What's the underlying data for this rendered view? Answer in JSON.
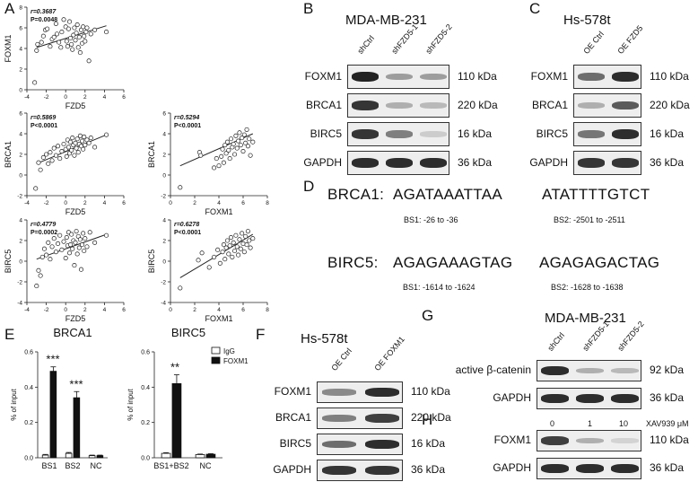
{
  "panel_letters": {
    "A": "A",
    "B": "B",
    "C": "C",
    "D": "D",
    "E": "E",
    "F": "F",
    "G": "G",
    "H": "H"
  },
  "scatter": [
    {
      "id": "a1",
      "ylabel": "FOXM1",
      "xlabel": "FZD5",
      "r": "r=0.3687",
      "p": "P=0.0048",
      "yticks": [
        "8",
        "6",
        "4",
        "2",
        "0"
      ],
      "xticks": [
        "-4",
        "-2",
        "0",
        "2",
        "4",
        "6"
      ],
      "xlim": [
        -4,
        6
      ],
      "ylim": [
        0,
        8
      ],
      "fit": [
        [
          -3,
          4.1
        ],
        [
          4.2,
          6.2
        ]
      ],
      "points": [
        [
          -3.2,
          0.7
        ],
        [
          -3,
          3.8
        ],
        [
          -2.9,
          4.4
        ],
        [
          -2.5,
          4.6
        ],
        [
          -2.3,
          5.2
        ],
        [
          -2.1,
          5.8
        ],
        [
          -1.9,
          5.9
        ],
        [
          -1.6,
          4.2
        ],
        [
          -1.4,
          4.9
        ],
        [
          -1.2,
          5.1
        ],
        [
          -1,
          6.4
        ],
        [
          -0.9,
          5.4
        ],
        [
          -0.7,
          4.6
        ],
        [
          -0.5,
          4.1
        ],
        [
          -0.4,
          5.6
        ],
        [
          -0.2,
          6.8
        ],
        [
          0,
          6.1
        ],
        [
          0.1,
          4.7
        ],
        [
          0.2,
          4.2
        ],
        [
          0.3,
          5.9
        ],
        [
          0.4,
          6.6
        ],
        [
          0.5,
          5.0
        ],
        [
          0.6,
          4.4
        ],
        [
          0.7,
          3.9
        ],
        [
          0.8,
          5.3
        ],
        [
          0.9,
          6.0
        ],
        [
          1,
          4.8
        ],
        [
          1.1,
          5.5
        ],
        [
          1.2,
          6.3
        ],
        [
          1.3,
          4.1
        ],
        [
          1.4,
          5.1
        ],
        [
          1.5,
          3.6
        ],
        [
          1.6,
          5.8
        ],
        [
          1.7,
          4.5
        ],
        [
          1.8,
          6.1
        ],
        [
          1.9,
          5.2
        ],
        [
          2,
          4.7
        ],
        [
          2.1,
          5.6
        ],
        [
          2.2,
          6.0
        ],
        [
          2.4,
          2.8
        ],
        [
          2.6,
          5.4
        ],
        [
          3,
          5.8
        ],
        [
          4.2,
          5.6
        ]
      ]
    },
    {
      "id": "a2",
      "ylabel": "BRCA1",
      "xlabel": "FZD5",
      "r": "r=0.5869",
      "p": "P<0.0001",
      "yticks": [
        "6",
        "4",
        "2",
        "0",
        "-2"
      ],
      "xticks": [
        "-4",
        "-2",
        "0",
        "2",
        "4",
        "6"
      ],
      "xlim": [
        -4,
        6
      ],
      "ylim": [
        -2,
        6
      ],
      "fit": [
        [
          -3,
          1.1
        ],
        [
          4.2,
          3.9
        ]
      ],
      "points": [
        [
          -3.1,
          -1.3
        ],
        [
          -2.8,
          1.2
        ],
        [
          -2.6,
          0.5
        ],
        [
          -2.3,
          1.7
        ],
        [
          -2.0,
          2.0
        ],
        [
          -1.8,
          1.1
        ],
        [
          -1.6,
          2.2
        ],
        [
          -1.4,
          1.4
        ],
        [
          -1.2,
          2.6
        ],
        [
          -1.0,
          1.9
        ],
        [
          -0.8,
          2.8
        ],
        [
          -0.6,
          1.6
        ],
        [
          -0.4,
          2.3
        ],
        [
          -0.2,
          3.0
        ],
        [
          0,
          2.5
        ],
        [
          0.1,
          1.8
        ],
        [
          0.2,
          3.4
        ],
        [
          0.3,
          2.7
        ],
        [
          0.4,
          2.1
        ],
        [
          0.5,
          3.2
        ],
        [
          0.6,
          2.4
        ],
        [
          0.7,
          3.6
        ],
        [
          0.8,
          2.9
        ],
        [
          0.9,
          1.9
        ],
        [
          1,
          3.1
        ],
        [
          1.1,
          2.6
        ],
        [
          1.2,
          3.5
        ],
        [
          1.3,
          2.2
        ],
        [
          1.4,
          3.0
        ],
        [
          1.5,
          3.8
        ],
        [
          1.6,
          2.8
        ],
        [
          1.7,
          3.3
        ],
        [
          1.8,
          2.5
        ],
        [
          1.9,
          3.7
        ],
        [
          2,
          2.9
        ],
        [
          2.2,
          3.4
        ],
        [
          2.4,
          3.1
        ],
        [
          2.6,
          3.6
        ],
        [
          3,
          2.7
        ],
        [
          4.2,
          3.9
        ]
      ]
    },
    {
      "id": "a3",
      "ylabel": "BRCA1",
      "xlabel": "FOXM1",
      "r": "r=0.5294",
      "p": "P<0.0001",
      "yticks": [
        "6",
        "4",
        "2",
        "0",
        "-2"
      ],
      "xticks": [
        "0",
        "2",
        "4",
        "6",
        "8"
      ],
      "xlim": [
        0,
        8
      ],
      "ylim": [
        -2,
        6
      ],
      "fit": [
        [
          0.8,
          0.9
        ],
        [
          6.8,
          4.0
        ]
      ],
      "points": [
        [
          0.8,
          -1.2
        ],
        [
          2.4,
          2.2
        ],
        [
          2.5,
          1.9
        ],
        [
          3.6,
          0.7
        ],
        [
          3.8,
          1.6
        ],
        [
          4.0,
          0.9
        ],
        [
          4.2,
          1.8
        ],
        [
          4.3,
          2.5
        ],
        [
          4.4,
          1.2
        ],
        [
          4.5,
          2.9
        ],
        [
          4.6,
          2.1
        ],
        [
          4.7,
          3.2
        ],
        [
          4.8,
          2.4
        ],
        [
          4.9,
          1.6
        ],
        [
          5.0,
          3.5
        ],
        [
          5.1,
          2.7
        ],
        [
          5.2,
          3.0
        ],
        [
          5.3,
          2.0
        ],
        [
          5.4,
          3.8
        ],
        [
          5.5,
          2.6
        ],
        [
          5.6,
          3.3
        ],
        [
          5.7,
          4.1
        ],
        [
          5.8,
          2.9
        ],
        [
          5.9,
          3.6
        ],
        [
          6.0,
          2.3
        ],
        [
          6.1,
          3.9
        ],
        [
          6.2,
          3.1
        ],
        [
          6.3,
          4.4
        ],
        [
          6.4,
          2.8
        ],
        [
          6.5,
          3.5
        ],
        [
          6.6,
          1.9
        ],
        [
          6.8,
          3.2
        ]
      ]
    },
    {
      "id": "a4",
      "ylabel": "BIRC5",
      "xlabel": "FZD5",
      "r": "r=0.4779",
      "p": "P=0.0002",
      "yticks": [
        "4",
        "2",
        "0",
        "-2",
        "-4"
      ],
      "xticks": [
        "-4",
        "-2",
        "0",
        "2",
        "4",
        "6"
      ],
      "xlim": [
        -4,
        6
      ],
      "ylim": [
        -4,
        4
      ],
      "fit": [
        [
          -3,
          0.2
        ],
        [
          4.2,
          2.6
        ]
      ],
      "points": [
        [
          -3.0,
          -2.4
        ],
        [
          -2.8,
          -0.9
        ],
        [
          -2.6,
          -1.4
        ],
        [
          -2.4,
          0.4
        ],
        [
          -2.2,
          1.2
        ],
        [
          -2.0,
          0.6
        ],
        [
          -1.8,
          1.8
        ],
        [
          -1.6,
          0.2
        ],
        [
          -1.4,
          1.4
        ],
        [
          -1.2,
          2.2
        ],
        [
          -1.0,
          0.9
        ],
        [
          -0.8,
          1.7
        ],
        [
          -0.6,
          2.5
        ],
        [
          -0.4,
          1.1
        ],
        [
          -0.2,
          1.9
        ],
        [
          0,
          0.3
        ],
        [
          0.1,
          2.3
        ],
        [
          0.2,
          1.5
        ],
        [
          0.3,
          2.8
        ],
        [
          0.4,
          0.8
        ],
        [
          0.5,
          1.6
        ],
        [
          0.6,
          2.6
        ],
        [
          0.7,
          1.2
        ],
        [
          0.8,
          2.0
        ],
        [
          0.9,
          -0.4
        ],
        [
          1.0,
          1.8
        ],
        [
          1.1,
          2.9
        ],
        [
          1.2,
          0.7
        ],
        [
          1.3,
          2.4
        ],
        [
          1.4,
          1.3
        ],
        [
          1.5,
          2.1
        ],
        [
          1.6,
          -0.8
        ],
        [
          1.7,
          1.6
        ],
        [
          1.8,
          2.7
        ],
        [
          1.9,
          1.0
        ],
        [
          2.0,
          2.2
        ],
        [
          2.2,
          1.4
        ],
        [
          2.5,
          2.8
        ],
        [
          3.0,
          1.8
        ],
        [
          4.2,
          2.5
        ]
      ]
    },
    {
      "id": "a5",
      "ylabel": "BIRC5",
      "xlabel": "FOXM1",
      "r": "r=0.6278",
      "p": "P<0.0001",
      "yticks": [
        "4",
        "2",
        "0",
        "-2",
        "-4"
      ],
      "xticks": [
        "0",
        "2",
        "4",
        "6",
        "8"
      ],
      "xlim": [
        0,
        8
      ],
      "ylim": [
        -4,
        4
      ],
      "fit": [
        [
          0.8,
          -1.6
        ],
        [
          6.8,
          2.6
        ]
      ],
      "points": [
        [
          0.8,
          -2.6
        ],
        [
          2.3,
          0.1
        ],
        [
          2.6,
          0.8
        ],
        [
          3.2,
          -0.6
        ],
        [
          3.6,
          0.4
        ],
        [
          3.9,
          1.1
        ],
        [
          4.1,
          -0.2
        ],
        [
          4.3,
          0.9
        ],
        [
          4.4,
          1.6
        ],
        [
          4.5,
          0.2
        ],
        [
          4.6,
          1.3
        ],
        [
          4.7,
          2.0
        ],
        [
          4.8,
          0.7
        ],
        [
          4.9,
          1.5
        ],
        [
          5.0,
          2.3
        ],
        [
          5.1,
          0.4
        ],
        [
          5.2,
          1.8
        ],
        [
          5.3,
          1.0
        ],
        [
          5.4,
          2.5
        ],
        [
          5.5,
          1.4
        ],
        [
          5.6,
          0.6
        ],
        [
          5.7,
          2.1
        ],
        [
          5.8,
          1.2
        ],
        [
          5.9,
          2.7
        ],
        [
          6.0,
          1.7
        ],
        [
          6.1,
          0.9
        ],
        [
          6.2,
          2.4
        ],
        [
          6.3,
          1.6
        ],
        [
          6.4,
          2.9
        ],
        [
          6.5,
          2.0
        ],
        [
          6.6,
          1.3
        ],
        [
          6.8,
          2.2
        ]
      ]
    }
  ],
  "blot_b": {
    "title": "MDA-MB-231",
    "lanes": [
      "shCtrl",
      "shFZD5-1",
      "shFZD5-2"
    ],
    "rows": [
      {
        "protein": "FOXM1",
        "kda": "110 kDa",
        "levels": [
          1.0,
          0.35,
          0.35
        ]
      },
      {
        "protein": "BRCA1",
        "kda": "220 kDa",
        "levels": [
          0.9,
          0.25,
          0.2
        ]
      },
      {
        "protein": "BIRC5",
        "kda": "16 kDa",
        "levels": [
          0.9,
          0.5,
          0.1
        ]
      },
      {
        "protein": "GAPDH",
        "kda": "36 kDa",
        "levels": [
          0.95,
          0.95,
          0.95
        ]
      }
    ]
  },
  "blot_c": {
    "title": "Hs-578t",
    "lanes": [
      "OE Ctrl",
      "OE FZD5"
    ],
    "rows": [
      {
        "protein": "FOXM1",
        "kda": "110 kDa",
        "levels": [
          0.6,
          0.95
        ]
      },
      {
        "protein": "BRCA1",
        "kda": "220 kDa",
        "levels": [
          0.25,
          0.7
        ]
      },
      {
        "protein": "BIRC5",
        "kda": "16 kDa",
        "levels": [
          0.55,
          0.95
        ]
      },
      {
        "protein": "GAPDH",
        "kda": "36 kDa",
        "levels": [
          0.9,
          0.9
        ]
      }
    ]
  },
  "panel_d": {
    "brca1_label": "BRCA1:",
    "brca1_seq1": "AGATAAATTAA",
    "brca1_seq2": "ATATTTTGTCT",
    "brca1_bs1": "BS1: -26 to -36",
    "brca1_bs2": "BS2: -2501 to -2511",
    "birc5_label": "BIRC5:",
    "birc5_seq1": "AGAGAAAGTAG",
    "birc5_seq2": "AGAGAGACTAG",
    "birc5_bs1": "BS1: -1614 to -1624",
    "birc5_bs2": "BS2: -1628 to -1638"
  },
  "chart_data": [
    {
      "type": "bar",
      "title": "BRCA1",
      "ylabel": "% of input",
      "ylim": [
        0,
        0.6
      ],
      "yticks": [
        "0.0",
        "0.2",
        "0.4",
        "0.6"
      ],
      "categories": [
        "BS1",
        "BS2",
        "NC"
      ],
      "series": [
        {
          "name": "IgG",
          "values": [
            0.015,
            0.025,
            0.012
          ],
          "errors": [
            0.004,
            0.005,
            0.003
          ]
        },
        {
          "name": "FOXM1",
          "values": [
            0.49,
            0.34,
            0.012
          ],
          "errors": [
            0.025,
            0.035,
            0.003
          ]
        }
      ],
      "annotations": [
        "***",
        "***",
        ""
      ]
    },
    {
      "type": "bar",
      "title": "BIRC5",
      "ylabel": "% of input",
      "ylim": [
        0,
        0.6
      ],
      "yticks": [
        "0.0",
        "0.2",
        "0.4",
        "0.6"
      ],
      "categories": [
        "BS1+BS2",
        "NC"
      ],
      "series": [
        {
          "name": "IgG",
          "values": [
            0.025,
            0.018
          ],
          "errors": [
            0.004,
            0.003
          ]
        },
        {
          "name": "FOXM1",
          "values": [
            0.42,
            0.02
          ],
          "errors": [
            0.05,
            0.003
          ]
        }
      ],
      "annotations": [
        "**",
        ""
      ]
    }
  ],
  "legend_e": {
    "igg": "IgG",
    "foxm1": "FOXM1"
  },
  "blot_f": {
    "title": "Hs-578t",
    "lanes": [
      "OE Ctrl",
      "OE FOXM1"
    ],
    "rows": [
      {
        "protein": "FOXM1",
        "kda": "110 kDa",
        "levels": [
          0.45,
          0.95
        ]
      },
      {
        "protein": "BRCA1",
        "kda": "220 kDa",
        "levels": [
          0.5,
          0.85
        ]
      },
      {
        "protein": "BIRC5",
        "kda": "16 kDa",
        "levels": [
          0.6,
          0.95
        ]
      },
      {
        "protein": "GAPDH",
        "kda": "36 kDa",
        "levels": [
          0.9,
          0.9
        ]
      }
    ]
  },
  "blot_g": {
    "title": "MDA-MB-231",
    "lanes": [
      "shCtrl",
      "shFZD5-1",
      "shFZD5-2"
    ],
    "rows": [
      {
        "protein": "active β-catenin",
        "kda": "92 kDa",
        "levels": [
          0.95,
          0.25,
          0.2
        ]
      },
      {
        "protein": "GAPDH",
        "kda": "36 kDa",
        "levels": [
          0.95,
          0.95,
          0.95
        ]
      }
    ]
  },
  "blot_h": {
    "doses": [
      "0",
      "1",
      "10"
    ],
    "unit": "XAV939 μM",
    "rows": [
      {
        "protein": "FOXM1",
        "kda": "110 kDa",
        "levels": [
          0.85,
          0.25,
          0.05
        ]
      },
      {
        "protein": "GAPDH",
        "kda": "36 kDa",
        "levels": [
          0.95,
          0.95,
          0.95
        ]
      }
    ]
  }
}
